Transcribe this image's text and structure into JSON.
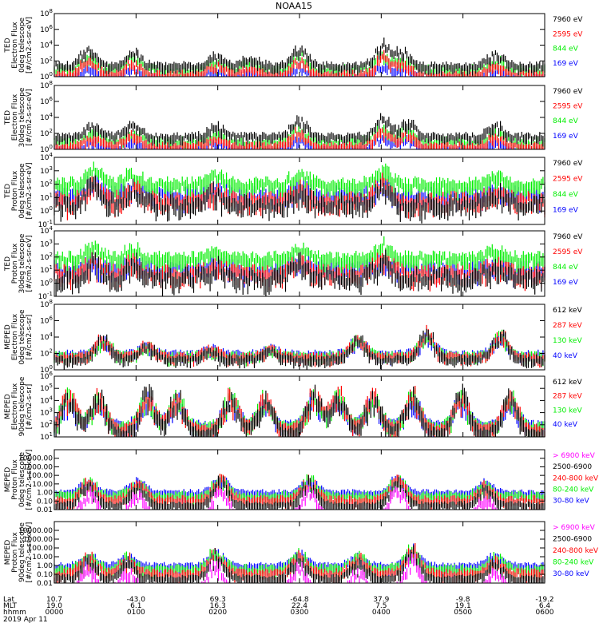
{
  "title": "NOAA15",
  "colors": {
    "black": "#000000",
    "red": "#ff0000",
    "green": "#00ee00",
    "blue": "#0000ff",
    "magenta": "#ff00ff"
  },
  "chart_data": [
    {
      "type": "line",
      "ylabel": [
        "TED",
        "Electron Flux",
        "0deg telescope",
        "[#/cm2-s-sr-eV]"
      ],
      "yscale": "log",
      "ylim": [
        1,
        100000000.0
      ],
      "yticks": [
        {
          "label": "10^0",
          "v": 1
        },
        {
          "label": "10^2",
          "v": 100
        },
        {
          "label": "10^4",
          "v": 10000
        },
        {
          "label": "10^6",
          "v": 1000000
        },
        {
          "label": "10^8",
          "v": 100000000
        }
      ],
      "series": [
        {
          "name": "7960 eV",
          "color": "#000000"
        },
        {
          "name": "2595 eV",
          "color": "#ff0000"
        },
        {
          "name": "844 eV",
          "color": "#00ee00"
        },
        {
          "name": "169 eV",
          "color": "#0000ff"
        }
      ],
      "base": [
        [
          1.7,
          0.3
        ],
        [
          0.6,
          0.3
        ],
        [
          1.2,
          0.4
        ],
        [
          0.2,
          0.2
        ]
      ],
      "peaks": [
        [
          0.16,
          1.7
        ],
        [
          0.07,
          2.0
        ],
        [
          0.33,
          1.2
        ],
        [
          0.5,
          2.0
        ],
        [
          0.71,
          1.6
        ],
        [
          0.67,
          2.3
        ],
        [
          0.9,
          1.4
        ],
        [
          0.4,
          1.0
        ]
      ]
    },
    {
      "type": "line",
      "ylabel": [
        "TED",
        "Electron Flux",
        "30deg telescope",
        "[#/cm2-s-sr-eV]"
      ],
      "yscale": "log",
      "ylim": [
        1,
        100000000.0
      ],
      "yticks": [
        {
          "label": "10^0",
          "v": 1
        },
        {
          "label": "10^2",
          "v": 100
        },
        {
          "label": "10^4",
          "v": 10000
        },
        {
          "label": "10^6",
          "v": 1000000
        },
        {
          "label": "10^8",
          "v": 100000000
        }
      ],
      "series": [
        {
          "name": "7960 eV",
          "color": "#000000"
        },
        {
          "name": "2595 eV",
          "color": "#ff0000"
        },
        {
          "name": "844 eV",
          "color": "#00ee00"
        },
        {
          "name": "169 eV",
          "color": "#0000ff"
        }
      ],
      "base": [
        [
          1.9,
          0.3
        ],
        [
          0.7,
          0.3
        ],
        [
          1.3,
          0.4
        ],
        [
          0.3,
          0.2
        ]
      ],
      "peaks": [
        [
          0.08,
          1.3
        ],
        [
          0.16,
          1.5
        ],
        [
          0.33,
          1.2
        ],
        [
          0.5,
          2.0
        ],
        [
          0.72,
          1.7
        ],
        [
          0.67,
          2.2
        ],
        [
          0.9,
          1.3
        ]
      ]
    },
    {
      "type": "line",
      "ylabel": [
        "TED",
        "Proton Flux",
        "0deg telescope",
        "[#/cm2-s-sr-eV]"
      ],
      "yscale": "log",
      "ylim": [
        0.1,
        10000.0
      ],
      "yticks": [
        {
          "label": "10^-1",
          "v": 0.1
        },
        {
          "label": "10^0",
          "v": 1
        },
        {
          "label": "10^1",
          "v": 10
        },
        {
          "label": "10^2",
          "v": 100
        },
        {
          "label": "10^3",
          "v": 1000
        },
        {
          "label": "10^4",
          "v": 10000
        }
      ],
      "series": [
        {
          "name": "7960 eV",
          "color": "#000000"
        },
        {
          "name": "2595 eV",
          "color": "#ff0000"
        },
        {
          "name": "844 eV",
          "color": "#00ee00"
        },
        {
          "name": "169 eV",
          "color": "#0000ff"
        }
      ],
      "base": [
        [
          0.9,
          0.5
        ],
        [
          1.1,
          0.4
        ],
        [
          2.3,
          0.3
        ],
        [
          1.5,
          0.4
        ]
      ],
      "peaks": [
        [
          0.08,
          1.3
        ],
        [
          0.16,
          1.0
        ],
        [
          0.33,
          0.8
        ],
        [
          0.5,
          1.0
        ],
        [
          0.67,
          1.3
        ],
        [
          0.9,
          0.8
        ]
      ]
    },
    {
      "type": "line",
      "ylabel": [
        "TED",
        "Proton Flux",
        "30deg telescope",
        "[#/cm2-s-sr-eV]"
      ],
      "yscale": "log",
      "ylim": [
        0.1,
        10000.0
      ],
      "yticks": [
        {
          "label": "10^-1",
          "v": 0.1
        },
        {
          "label": "10^0",
          "v": 1
        },
        {
          "label": "10^1",
          "v": 10
        },
        {
          "label": "10^2",
          "v": 100
        },
        {
          "label": "10^3",
          "v": 1000
        },
        {
          "label": "10^4",
          "v": 10000
        }
      ],
      "series": [
        {
          "name": "7960 eV",
          "color": "#000000"
        },
        {
          "name": "2595 eV",
          "color": "#ff0000"
        },
        {
          "name": "844 eV",
          "color": "#00ee00"
        },
        {
          "name": "169 eV",
          "color": "#0000ff"
        }
      ],
      "base": [
        [
          0.8,
          0.5
        ],
        [
          1.1,
          0.4
        ],
        [
          2.2,
          0.3
        ],
        [
          1.4,
          0.4
        ]
      ],
      "peaks": [
        [
          0.08,
          1.0
        ],
        [
          0.16,
          0.9
        ],
        [
          0.33,
          0.7
        ],
        [
          0.5,
          0.9
        ],
        [
          0.67,
          1.2
        ],
        [
          0.9,
          0.7
        ]
      ]
    },
    {
      "type": "line",
      "ylabel": [
        "MEPED",
        "Electron Flux",
        "0deg telescope",
        "[#/cm2-s-sr]"
      ],
      "yscale": "log",
      "ylim": [
        1,
        100000000.0
      ],
      "yticks": [
        {
          "label": "10^0",
          "v": 1
        },
        {
          "label": "10^2",
          "v": 100
        },
        {
          "label": "10^4",
          "v": 10000
        },
        {
          "label": "10^6",
          "v": 1000000
        },
        {
          "label": "10^8",
          "v": 100000000
        }
      ],
      "series": [
        {
          "name": "612 keV",
          "color": "#000000"
        },
        {
          "name": "287 keV",
          "color": "#ff0000"
        },
        {
          "name": "130 keV",
          "color": "#00ee00"
        },
        {
          "name": "40 keV",
          "color": "#0000ff"
        }
      ],
      "base": [
        [
          1.6,
          0.3
        ],
        [
          1.9,
          0.3
        ],
        [
          2.0,
          0.3
        ],
        [
          2.2,
          0.3
        ]
      ],
      "peaks": [
        [
          0.1,
          2.5
        ],
        [
          0.19,
          1.5
        ],
        [
          0.32,
          1.0
        ],
        [
          0.44,
          1.0
        ],
        [
          0.62,
          2.5
        ],
        [
          0.76,
          3.0
        ],
        [
          0.91,
          3.0
        ]
      ]
    },
    {
      "type": "line",
      "ylabel": [
        "MEPED",
        "Electron Flux",
        "90deg telescope",
        "[#/cm2-s-sr]"
      ],
      "yscale": "log",
      "ylim": [
        10,
        1000000.0
      ],
      "yticks": [
        {
          "label": "10^1",
          "v": 10
        },
        {
          "label": "10^2",
          "v": 100
        },
        {
          "label": "10^3",
          "v": 1000
        },
        {
          "label": "10^4",
          "v": 10000
        },
        {
          "label": "10^5",
          "v": 100000
        },
        {
          "label": "10^6",
          "v": 1000000
        }
      ],
      "series": [
        {
          "name": "612 keV",
          "color": "#000000"
        },
        {
          "name": "287 keV",
          "color": "#ff0000"
        },
        {
          "name": "130 keV",
          "color": "#00ee00"
        },
        {
          "name": "40 keV",
          "color": "#0000ff"
        }
      ],
      "base": [
        [
          1.6,
          0.2
        ],
        [
          1.9,
          0.2
        ],
        [
          2.1,
          0.2
        ],
        [
          2.2,
          0.2
        ]
      ],
      "peaks": [
        [
          0.03,
          3.0
        ],
        [
          0.09,
          3.0
        ],
        [
          0.19,
          3.2
        ],
        [
          0.25,
          3.0
        ],
        [
          0.36,
          3.0
        ],
        [
          0.43,
          3.0
        ],
        [
          0.53,
          3.2
        ],
        [
          0.58,
          3.0
        ],
        [
          0.65,
          3.0
        ],
        [
          0.73,
          3.2
        ],
        [
          0.83,
          3.0
        ],
        [
          0.93,
          3.0
        ]
      ]
    },
    {
      "type": "line",
      "ylabel": [
        "MEPED",
        "Proton Flux",
        "0deg telescope",
        "[#/cm2-s-sr-keV]"
      ],
      "yscale": "log",
      "ylim": [
        0.01,
        100000.0
      ],
      "yticks": [
        {
          "label": "0.01",
          "v": 0.01
        },
        {
          "label": "0.10",
          "v": 0.1
        },
        {
          "label": "1.00",
          "v": 1
        },
        {
          "label": "10.00",
          "v": 10
        },
        {
          "label": "100.00",
          "v": 100
        },
        {
          "label": "1000.00",
          "v": 1000
        },
        {
          "label": "10000.00",
          "v": 10000
        }
      ],
      "series": [
        {
          "name": "> 6900 keV",
          "color": "#ff00ff"
        },
        {
          "name": "2500-6900",
          "color": "#000000"
        },
        {
          "name": "240-800 keV",
          "color": "#ff0000"
        },
        {
          "name": "80-240 keV",
          "color": "#00ee00"
        },
        {
          "name": "30-80 keV",
          "color": "#0000ff"
        }
      ],
      "base": [
        [
          -2.5,
          0.1
        ],
        [
          -1.2,
          0.2
        ],
        [
          -0.6,
          0.3
        ],
        [
          -0.1,
          0.3
        ],
        [
          0.2,
          0.2
        ]
      ],
      "peaks": [
        [
          0.07,
          2.6
        ],
        [
          0.17,
          2.5
        ],
        [
          0.34,
          3.0
        ],
        [
          0.52,
          2.8
        ],
        [
          0.7,
          3.1
        ],
        [
          0.88,
          2.0
        ]
      ]
    },
    {
      "type": "line",
      "ylabel": [
        "MEPED",
        "Proton Flux",
        "90deg telescope",
        "[#/cm2-s-sr-keV]"
      ],
      "yscale": "log",
      "ylim": [
        0.01,
        100000.0
      ],
      "yticks": [
        {
          "label": "0.01",
          "v": 0.01
        },
        {
          "label": "0.10",
          "v": 0.1
        },
        {
          "label": "1.00",
          "v": 1
        },
        {
          "label": "10.00",
          "v": 10
        },
        {
          "label": "100.00",
          "v": 100
        },
        {
          "label": "1000.00",
          "v": 1000
        },
        {
          "label": "10000.00",
          "v": 10000
        }
      ],
      "series": [
        {
          "name": "> 6900 keV",
          "color": "#ff00ff"
        },
        {
          "name": "2500-6900",
          "color": "#000000"
        },
        {
          "name": "240-800 keV",
          "color": "#ff0000"
        },
        {
          "name": "80-240 keV",
          "color": "#00ee00"
        },
        {
          "name": "30-80 keV",
          "color": "#0000ff"
        }
      ],
      "base": [
        [
          -2.5,
          0.1
        ],
        [
          -1.2,
          0.2
        ],
        [
          -0.6,
          0.3
        ],
        [
          -0.1,
          0.3
        ],
        [
          0.2,
          0.2
        ]
      ],
      "peaks": [
        [
          0.07,
          2.2
        ],
        [
          0.15,
          2.0
        ],
        [
          0.33,
          2.8
        ],
        [
          0.5,
          2.6
        ],
        [
          0.62,
          2.0
        ],
        [
          0.73,
          3.3
        ],
        [
          0.9,
          2.0
        ]
      ]
    }
  ],
  "xaxis": {
    "row_labels": [
      "Lat",
      "MLT",
      "hhmm"
    ],
    "date": "2019 Apr 11",
    "ticks": [
      {
        "lat": "10.7",
        "mlt": "19.0",
        "hhmm": "0000"
      },
      {
        "lat": "-43.0",
        "mlt": "6.1",
        "hhmm": "0100"
      },
      {
        "lat": "69.3",
        "mlt": "16.3",
        "hhmm": "0200"
      },
      {
        "lat": "-64.8",
        "mlt": "22.4",
        "hhmm": "0300"
      },
      {
        "lat": "37.9",
        "mlt": "7.5",
        "hhmm": "0400"
      },
      {
        "lat": "-9.8",
        "mlt": "19.1",
        "hhmm": "0500"
      },
      {
        "lat": "-19.2",
        "mlt": "6.4",
        "hhmm": "0600"
      }
    ]
  }
}
